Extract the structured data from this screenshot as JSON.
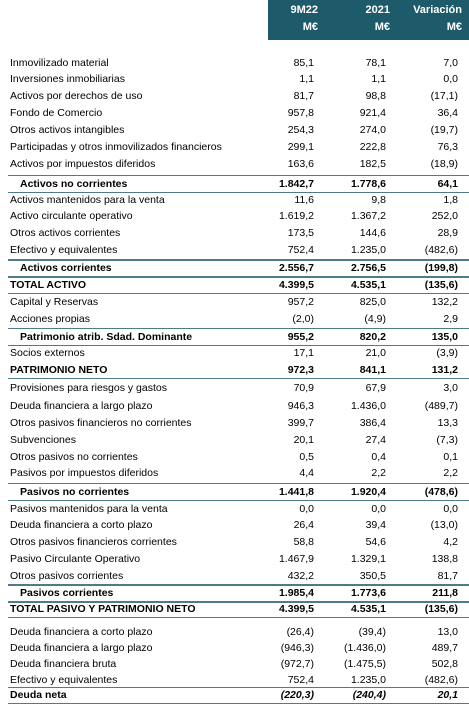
{
  "table": {
    "header": [
      [
        "9M22",
        "M€"
      ],
      [
        "2021",
        "M€"
      ],
      [
        "Variación",
        "M€"
      ]
    ],
    "rows": [
      [
        "Inmovilizado material",
        "85,1",
        "78,1",
        "7,0"
      ],
      [
        "Inversiones inmobiliarias",
        "1,1",
        "1,1",
        "0,0"
      ],
      [
        "Activos por derechos de uso",
        "81,7",
        "98,8",
        "(17,1)"
      ],
      [
        "Fondo de Comercio",
        "957,8",
        "921,4",
        "36,4"
      ],
      [
        "Otros activos intangibles",
        "254,3",
        "274,0",
        "(19,7)"
      ],
      [
        "Participadas y otros inmovilizados financieros",
        "299,1",
        "222,8",
        "76,3"
      ],
      [
        "Activos por impuestos diferidos",
        "163,6",
        "182,5",
        "(18,9)"
      ],
      [
        "Activos no corrientes",
        "1.842,7",
        "1.778,6",
        "64,1"
      ],
      [
        "Activos mantenidos para la venta",
        "11,6",
        "9,8",
        "1,8"
      ],
      [
        "Activo circulante operativo",
        "1.619,2",
        "1.367,2",
        "252,0"
      ],
      [
        "Otros activos corrientes",
        "173,5",
        "144,6",
        "28,9"
      ],
      [
        "Efectivo y equivalentes",
        "752,4",
        "1.235,0",
        "(482,6)"
      ],
      [
        "Activos corrientes",
        "2.556,7",
        "2.756,5",
        "(199,8)"
      ],
      [
        "TOTAL ACTIVO",
        "4.399,5",
        "4.535,1",
        "(135,6)"
      ],
      [
        "Capital y Reservas",
        "957,2",
        "825,0",
        "132,2"
      ],
      [
        "Acciones propias",
        "(2,0)",
        "(4,9)",
        "2,9"
      ],
      [
        "Patrimonio atrib. Sdad. Dominante",
        "955,2",
        "820,2",
        "135,0"
      ],
      [
        "Socios externos",
        "17,1",
        "21,0",
        "(3,9)"
      ],
      [
        "PATRIMONIO NETO",
        "972,3",
        "841,1",
        "131,2"
      ],
      [
        "Provisiones para riesgos y gastos",
        "70,9",
        "67,9",
        "3,0"
      ],
      [
        "Deuda financiera a largo plazo",
        "946,3",
        "1.436,0",
        "(489,7)"
      ],
      [
        "Otros pasivos financieros no corrientes",
        "399,7",
        "386,4",
        "13,3"
      ],
      [
        "Subvenciones",
        "20,1",
        "27,4",
        "(7,3)"
      ],
      [
        "Otros pasivos no corrientes",
        "0,5",
        "0,4",
        "0,1"
      ],
      [
        "Pasivos por impuestos diferidos",
        "4,4",
        "2,2",
        "2,2"
      ],
      [
        "Pasivos no corrientes",
        "1.441,8",
        "1.920,4",
        "(478,6)"
      ],
      [
        "Pasivos mantenidos para la venta",
        "0,0",
        "0,0",
        "0,0"
      ],
      [
        "Deuda financiera a corto plazo",
        "26,4",
        "39,4",
        "(13,0)"
      ],
      [
        "Otros pasivos financieros corrientes",
        "58,8",
        "54,6",
        "4,2"
      ],
      [
        "Pasivo Circulante Operativo",
        "1.467,9",
        "1.329,1",
        "138,8"
      ],
      [
        "Otros pasivos corrientes",
        "432,2",
        "350,5",
        "81,7"
      ],
      [
        "Pasivos corrientes",
        "1.985,4",
        "1.773,6",
        "211,8"
      ],
      [
        "TOTAL PASIVO Y PATRIMONIO NETO",
        "4.399,5",
        "4.535,1",
        "(135,6)"
      ],
      [
        "Deuda financiera a corto plazo",
        "(26,4)",
        "(39,4)",
        "13,0"
      ],
      [
        "Deuda financiera a largo plazo",
        "(946,3)",
        "(1.436,0)",
        "489,7"
      ],
      [
        "Deuda financiera bruta",
        "(972,7)",
        "(1.475,5)",
        "502,8"
      ],
      [
        "Efectivo y equivalentes",
        "752,4",
        "1.235,0",
        "(482,6)"
      ],
      [
        "Deuda neta",
        "(220,3)",
        "(240,4)",
        "20,1"
      ]
    ]
  }
}
